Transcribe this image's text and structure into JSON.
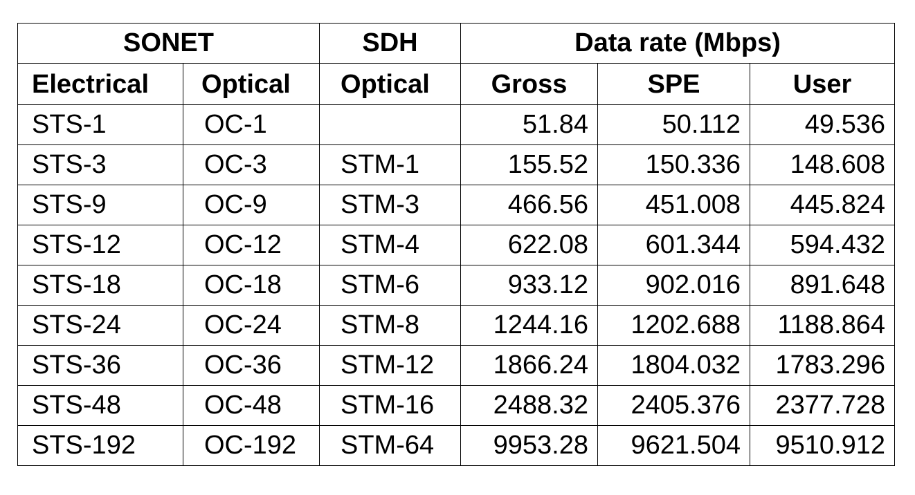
{
  "table": {
    "group_headers": {
      "sonet": "SONET",
      "sdh": "SDH",
      "data_rate": "Data rate (Mbps)"
    },
    "columns": [
      "Electrical",
      "Optical",
      "Optical",
      "Gross",
      "SPE",
      "User"
    ],
    "rows": [
      [
        "STS-1",
        "OC-1",
        "",
        "51.84",
        "50.112",
        "49.536"
      ],
      [
        "STS-3",
        "OC-3",
        "STM-1",
        "155.52",
        "150.336",
        "148.608"
      ],
      [
        "STS-9",
        "OC-9",
        "STM-3",
        "466.56",
        "451.008",
        "445.824"
      ],
      [
        "STS-12",
        "OC-12",
        "STM-4",
        "622.08",
        "601.344",
        "594.432"
      ],
      [
        "STS-18",
        "OC-18",
        "STM-6",
        "933.12",
        "902.016",
        "891.648"
      ],
      [
        "STS-24",
        "OC-24",
        "STM-8",
        "1244.16",
        "1202.688",
        "1188.864"
      ],
      [
        "STS-36",
        "OC-36",
        "STM-12",
        "1866.24",
        "1804.032",
        "1783.296"
      ],
      [
        "STS-48",
        "OC-48",
        "STM-16",
        "2488.32",
        "2405.376",
        "2377.728"
      ],
      [
        "STS-192",
        "OC-192",
        "STM-64",
        "9953.28",
        "9621.504",
        "9510.912"
      ]
    ]
  }
}
